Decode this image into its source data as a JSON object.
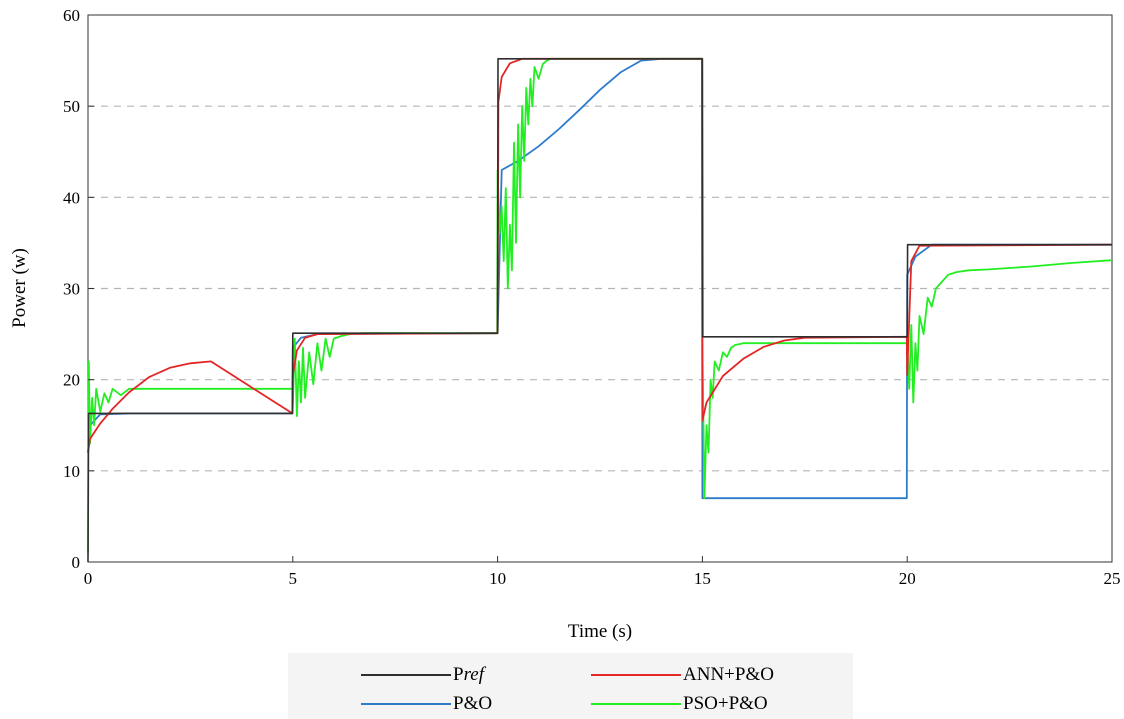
{
  "chart_data": {
    "type": "line",
    "title": "",
    "xlabel": "Time (s)",
    "ylabel": "Power (w)",
    "xlim": [
      0,
      25
    ],
    "ylim": [
      0,
      60
    ],
    "xticks": [
      0,
      5,
      10,
      15,
      20,
      25
    ],
    "yticks": [
      0,
      10,
      20,
      30,
      40,
      50,
      60
    ],
    "grid": "horizontal dashed",
    "legend_position": "bottom",
    "series": [
      {
        "name": "Pref",
        "color": "#2f2f2f",
        "x": [
          0,
          0.01,
          4.99,
          5.0,
          5.01,
          9.99,
          10.0,
          10.01,
          14.99,
          15.0,
          15.01,
          19.99,
          20.0,
          20.01,
          25
        ],
        "y": [
          0,
          16.3,
          16.3,
          25.1,
          25.1,
          25.1,
          25.1,
          55.2,
          55.2,
          55.2,
          24.7,
          24.7,
          24.7,
          34.8,
          34.8
        ]
      },
      {
        "name": "P&O",
        "color": "#2d7ccc",
        "x": [
          0,
          0.05,
          0.3,
          1.0,
          4.99,
          5.0,
          5.2,
          5.6,
          10.0,
          10.1,
          10.5,
          11.0,
          11.5,
          12.0,
          12.5,
          13.0,
          13.5,
          14.0,
          14.99,
          15.0,
          15.1,
          17.0,
          19.99,
          20.0,
          20.2,
          20.6,
          25
        ],
        "y": [
          12,
          15,
          16.2,
          16.3,
          16.3,
          23.5,
          24.6,
          25.0,
          25.1,
          43,
          44,
          45.6,
          47.5,
          49.6,
          51.8,
          53.7,
          55.0,
          55.2,
          55.2,
          7.0,
          7.0,
          7.0,
          7.0,
          31.5,
          33.5,
          34.8,
          34.8
        ]
      },
      {
        "name": "ANN+P&O",
        "color": "#e52626",
        "x": [
          0,
          0.05,
          0.3,
          0.6,
          1.0,
          1.5,
          2.0,
          2.5,
          3.0,
          4.99,
          5.0,
          5.1,
          5.3,
          5.6,
          10.0,
          10.02,
          10.1,
          10.3,
          10.6,
          14.99,
          15.0,
          15.1,
          15.5,
          16.0,
          16.5,
          17.0,
          17.5,
          19.99,
          20.0,
          20.1,
          20.3,
          25
        ],
        "y": [
          12,
          13.5,
          15.2,
          16.8,
          18.6,
          20.3,
          21.3,
          21.8,
          22.0,
          16.3,
          20.5,
          23.2,
          24.6,
          25.0,
          25.1,
          50.5,
          53.2,
          54.7,
          55.2,
          55.2,
          15.5,
          17.5,
          20.4,
          22.3,
          23.6,
          24.3,
          24.6,
          24.7,
          20.5,
          33.0,
          34.7,
          34.8
        ]
      },
      {
        "name": "PSO+P&O",
        "color": "#22ee22",
        "x": [
          0,
          0.02,
          0.05,
          0.1,
          0.15,
          0.2,
          0.3,
          0.4,
          0.5,
          0.6,
          0.8,
          1.0,
          1.3,
          1.6,
          4.99,
          5.0,
          5.05,
          5.1,
          5.15,
          5.2,
          5.25,
          5.3,
          5.4,
          5.5,
          5.6,
          5.7,
          5.8,
          5.9,
          6.0,
          6.2,
          6.4,
          6.7,
          7.0,
          9.99,
          10.0,
          10.05,
          10.1,
          10.15,
          10.2,
          10.25,
          10.3,
          10.35,
          10.4,
          10.45,
          10.5,
          10.55,
          10.6,
          10.65,
          10.7,
          10.75,
          10.8,
          10.85,
          10.9,
          11.0,
          11.1,
          11.2,
          11.3,
          11.5,
          11.7,
          12.0,
          14.99,
          15.0,
          15.05,
          15.1,
          15.15,
          15.2,
          15.25,
          15.3,
          15.4,
          15.5,
          15.6,
          15.7,
          15.8,
          16.0,
          16.3,
          16.6,
          17.0,
          19.99,
          20.0,
          20.05,
          20.1,
          20.15,
          20.2,
          20.25,
          20.3,
          20.4,
          20.5,
          20.6,
          20.7,
          20.8,
          21.0,
          21.2,
          21.5,
          22.0,
          23.0,
          24.0,
          25.0
        ],
        "y": [
          1,
          22,
          13,
          18,
          15,
          19,
          16.5,
          18.5,
          17.5,
          19,
          18.3,
          19,
          19,
          19,
          19,
          17,
          24.5,
          16,
          22,
          17.5,
          23.5,
          18,
          23,
          19.5,
          24,
          21,
          24.5,
          22.5,
          24.5,
          24.8,
          25,
          25.1,
          25.1,
          25.1,
          43,
          36,
          39,
          33,
          41,
          30,
          37,
          32,
          46,
          35,
          48,
          40,
          50,
          44,
          52,
          48,
          53,
          50,
          54.3,
          53,
          54.6,
          55,
          55.2,
          55.2,
          55.2,
          55.2,
          55.2,
          24.5,
          7,
          15,
          12,
          20,
          18,
          22,
          21,
          23,
          22.5,
          23.5,
          23.8,
          24,
          24,
          24,
          24,
          24,
          24,
          19,
          26,
          17.5,
          24,
          21,
          27,
          25,
          29,
          28,
          30,
          30.5,
          31.5,
          31.8,
          32,
          32.1,
          32.4,
          32.8,
          33.1
        ]
      }
    ]
  },
  "legend": [
    {
      "key": "pref",
      "label_prefix": "P",
      "label_italic": "ref",
      "color": "#2f2f2f"
    },
    {
      "key": "ann",
      "label": "ANN+P&O",
      "color": "#e52626"
    },
    {
      "key": "po",
      "label": "P&O",
      "color": "#2d7ccc"
    },
    {
      "key": "pso",
      "label": "PSO+P&O",
      "color": "#22ee22"
    }
  ]
}
